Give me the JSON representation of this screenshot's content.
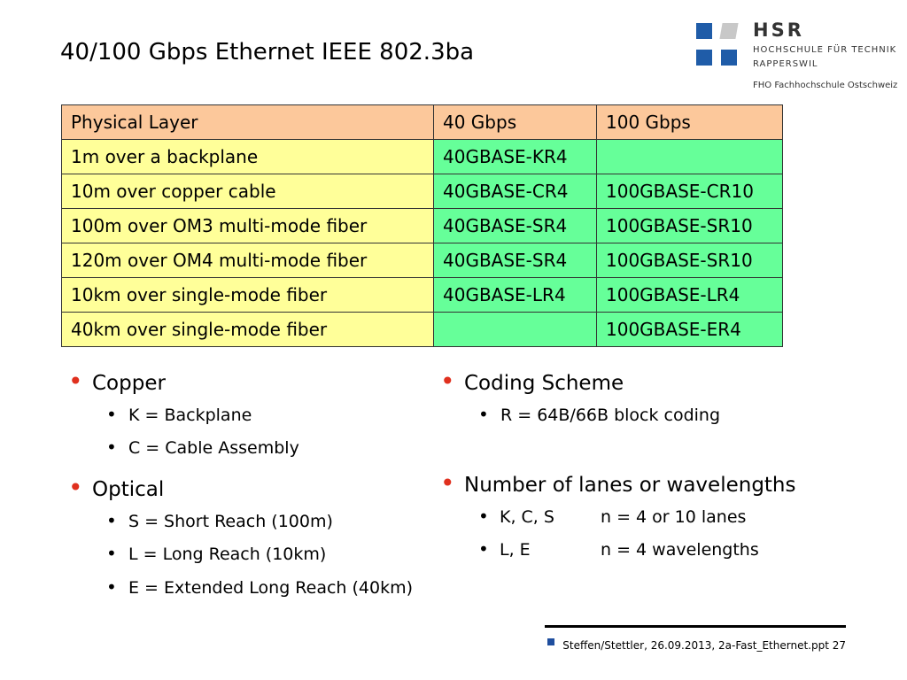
{
  "header": {
    "title": "40/100 Gbps Ethernet IEEE 802.3ba",
    "logo": {
      "name": "HSR",
      "line1": "HOCHSCHULE FÜR TECHNIK",
      "line2": "RAPPERSWIL",
      "line3": "FHO Fachhochschule Ostschweiz"
    }
  },
  "table": {
    "header": [
      "Physical Layer",
      "40 Gbps",
      "100 Gbps"
    ],
    "rows": [
      [
        "1m over a backplane",
        "40GBASE-KR4",
        null
      ],
      [
        "10m over copper cable",
        "40GBASE-CR4",
        "100GBASE-CR10"
      ],
      [
        "100m over OM3 multi-mode fiber",
        "40GBASE-SR4",
        "100GBASE-SR10"
      ],
      [
        "120m over OM4 multi-mode fiber",
        "40GBASE-SR4",
        "100GBASE-SR10"
      ],
      [
        "10km over single-mode fiber",
        "40GBASE-LR4",
        "100GBASE-LR4"
      ],
      [
        "40km over single-mode fiber",
        null,
        "100GBASE-ER4"
      ]
    ]
  },
  "bullets_left": [
    {
      "text": "Copper",
      "items": [
        "K = Backplane",
        "C = Cable Assembly"
      ]
    },
    {
      "text": "Optical",
      "items": [
        "S = Short Reach (100m)",
        "L = Long Reach (10km)",
        "E = Extended Long Reach (40km)"
      ]
    }
  ],
  "bullets_right": [
    {
      "text": "Coding Scheme",
      "items": [
        "R = 64B/66B block coding"
      ]
    },
    {
      "text": "Number of lanes or wavelengths",
      "items": [
        [
          "K, C, S",
          "n = 4 or 10 lanes"
        ],
        [
          "L, E",
          "n = 4 wavelengths"
        ]
      ]
    }
  ],
  "footer": "Steffen/Stettler, 26.09.2013, 2a-Fast_Ethernet.ppt 27"
}
